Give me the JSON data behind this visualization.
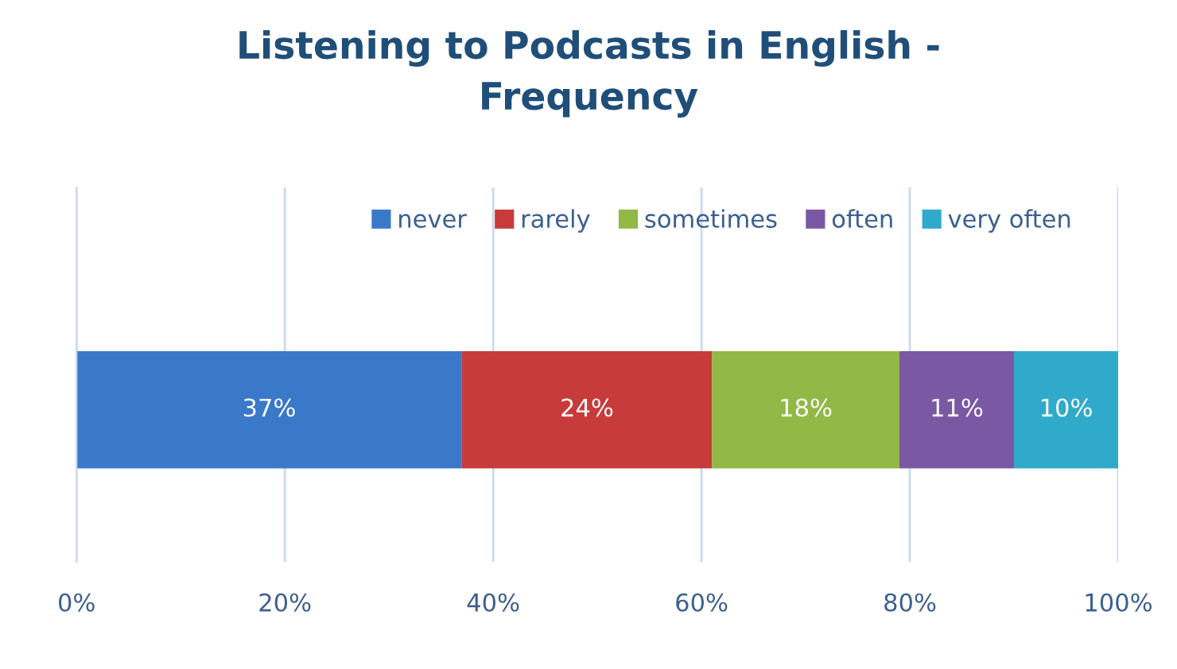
{
  "chart_data": {
    "type": "bar",
    "orientation": "horizontal",
    "stacked": true,
    "title": "Listening to Podcasts in English -\nFrequency",
    "categories": [
      null
    ],
    "series": [
      {
        "name": "never",
        "color": "#3a78c9",
        "values": [
          37
        ],
        "value_labels": [
          "37%"
        ]
      },
      {
        "name": "rarely",
        "color": "#c73b3a",
        "values": [
          24
        ],
        "value_labels": [
          "24%"
        ]
      },
      {
        "name": "sometimes",
        "color": "#92b845",
        "values": [
          18
        ],
        "value_labels": [
          "18%"
        ]
      },
      {
        "name": "often",
        "color": "#7a58a3",
        "values": [
          11
        ],
        "value_labels": [
          "11%"
        ]
      },
      {
        "name": "very often",
        "color": "#30aacb",
        "values": [
          10
        ],
        "value_labels": [
          "10%"
        ]
      }
    ],
    "xlim": [
      0,
      100
    ],
    "xticks": [
      {
        "value": 0,
        "label": "0%"
      },
      {
        "value": 20,
        "label": "20%"
      },
      {
        "value": 40,
        "label": "40%"
      },
      {
        "value": 60,
        "label": "60%"
      },
      {
        "value": 80,
        "label": "80%"
      },
      {
        "value": 100,
        "label": "100%"
      }
    ],
    "grid": "x",
    "legend": "top"
  }
}
